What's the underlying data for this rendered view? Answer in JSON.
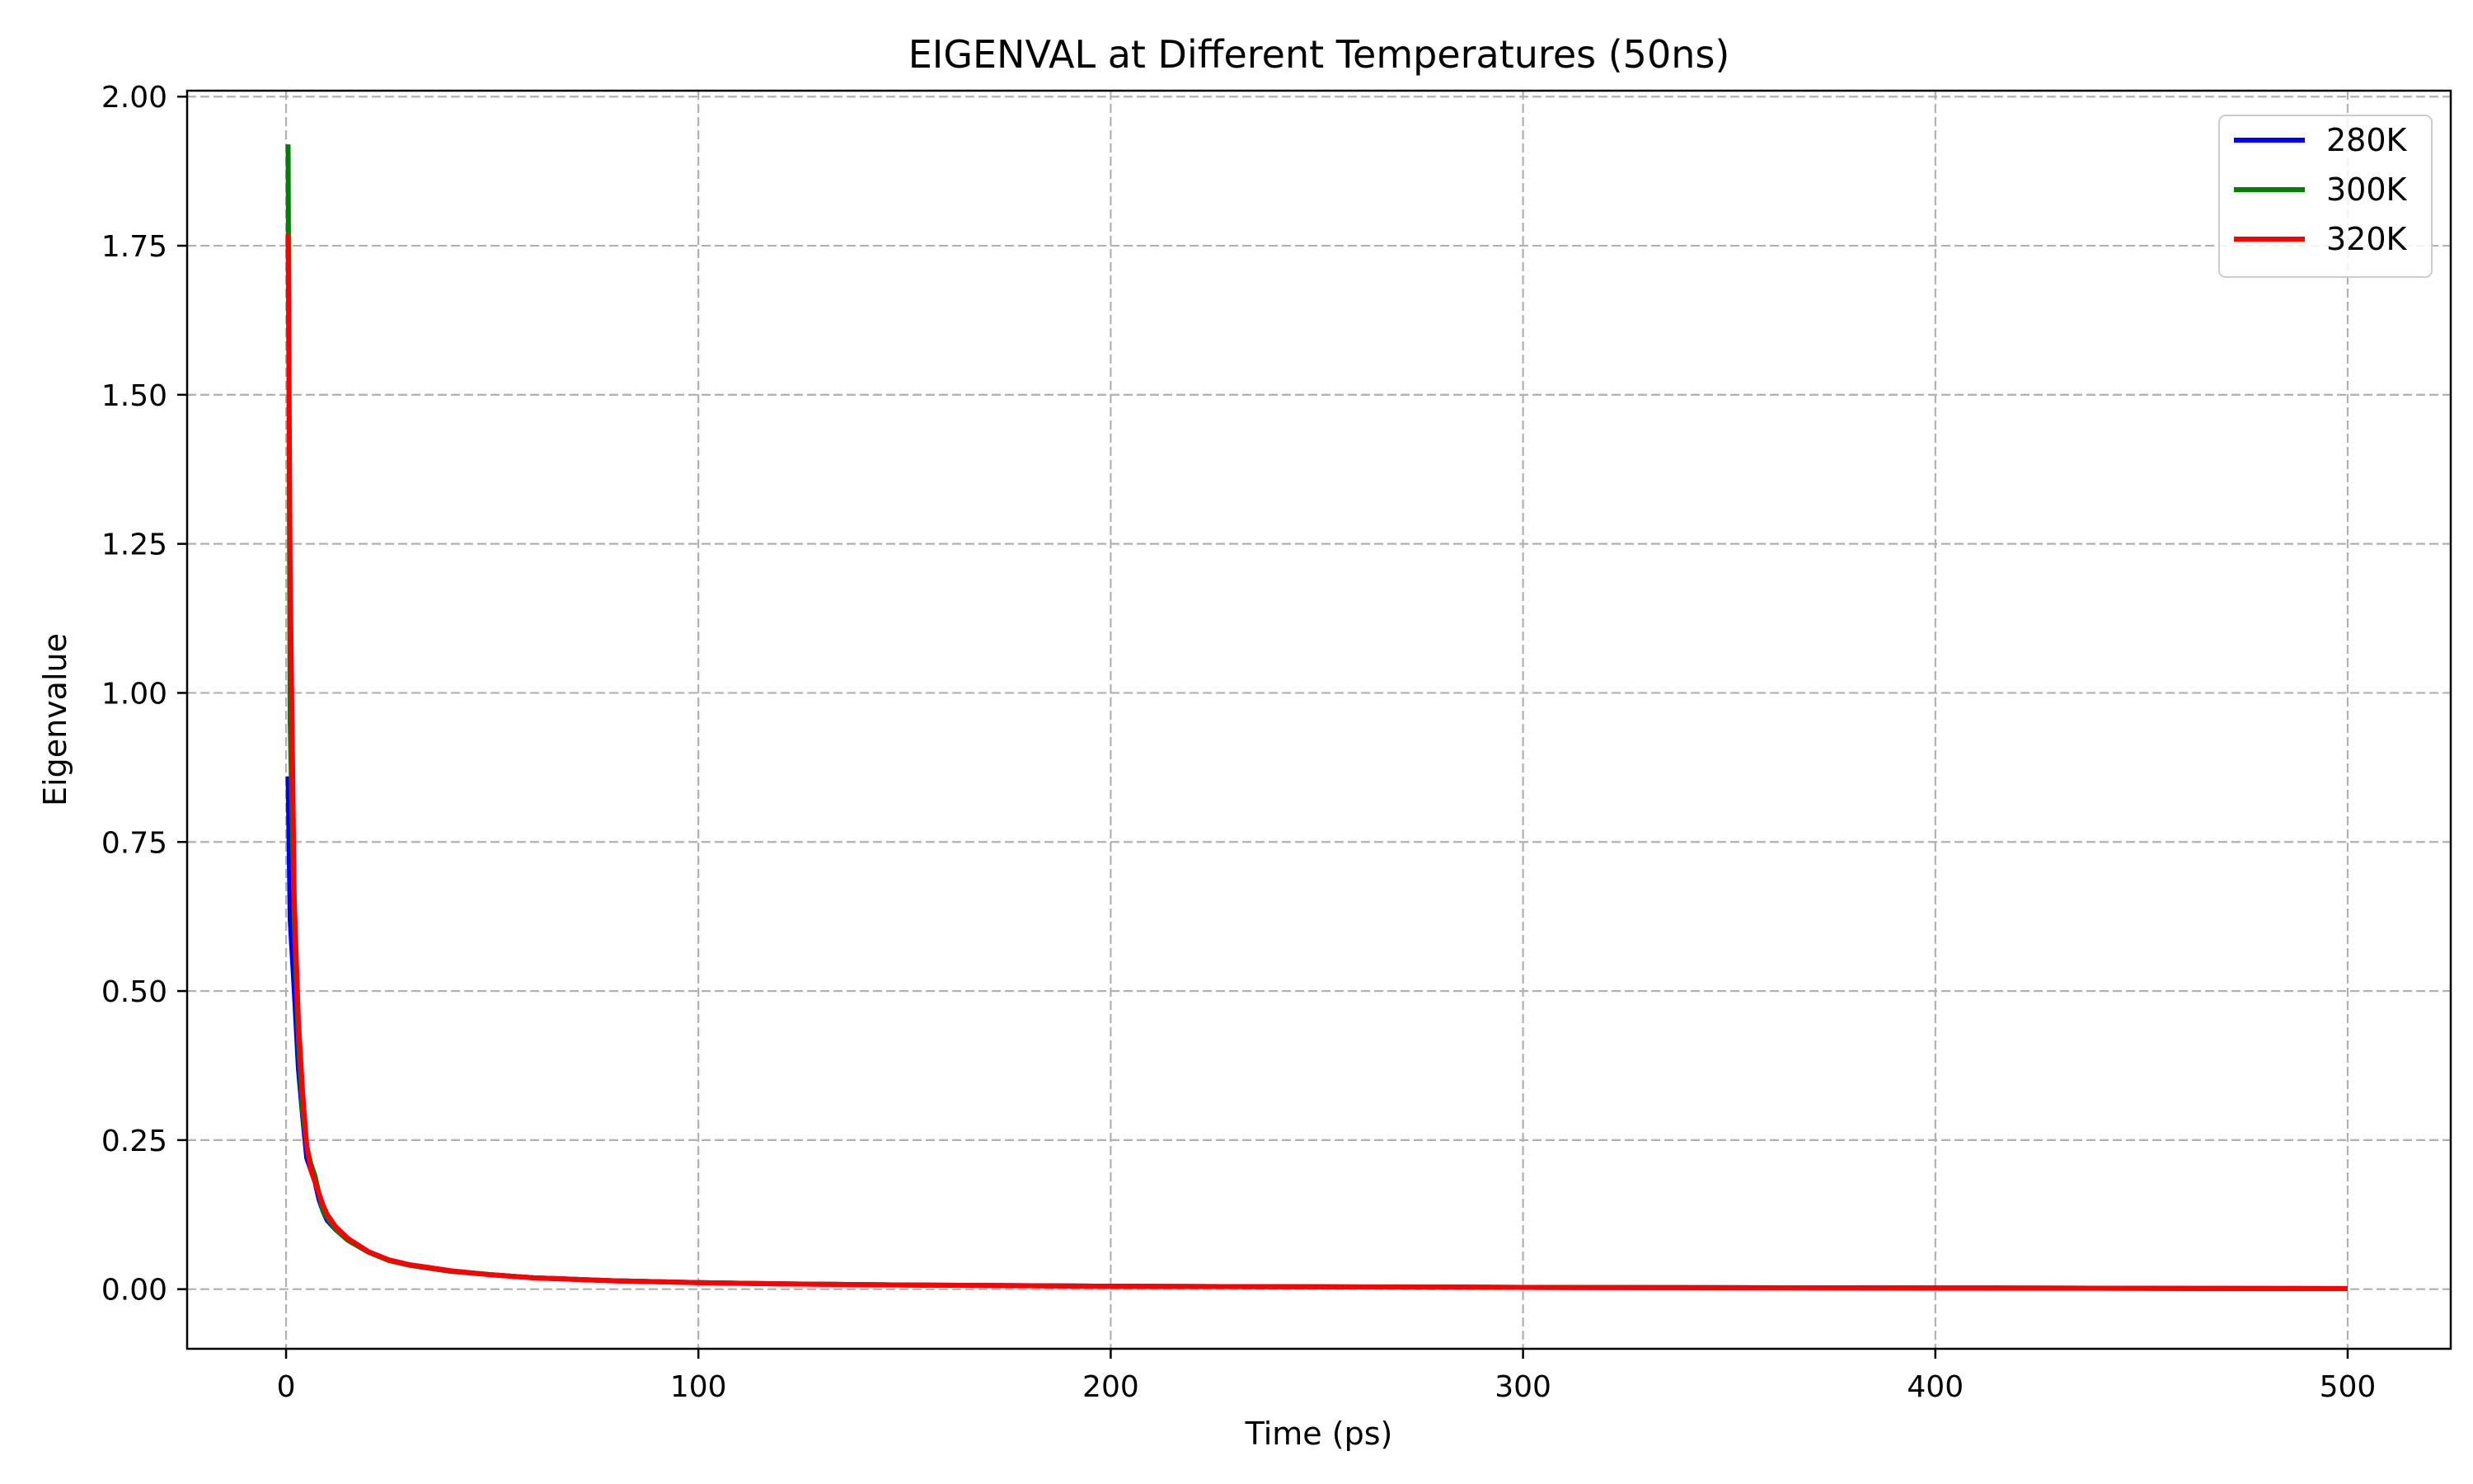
{
  "chart_data": {
    "type": "line",
    "title": "EIGENVAL at Different Temperatures (50ns)",
    "xlabel": "Time (ps)",
    "ylabel": "Eigenvalue",
    "xlim": [
      -24,
      525
    ],
    "ylim": [
      -0.1,
      2.01
    ],
    "xticks": [
      0,
      100,
      200,
      300,
      400,
      500
    ],
    "yticks": [
      0.0,
      0.25,
      0.5,
      0.75,
      1.0,
      1.25,
      1.5,
      1.75,
      2.0
    ],
    "xtick_labels": [
      "0",
      "100",
      "200",
      "300",
      "400",
      "500"
    ],
    "ytick_labels": [
      "0.00",
      "0.25",
      "0.50",
      "0.75",
      "1.00",
      "1.25",
      "1.50",
      "1.75",
      "2.00"
    ],
    "grid": true,
    "legend_position": "top-right",
    "series": [
      {
        "name": "280K",
        "color": "#0000ff",
        "x": [
          0.5,
          1,
          2,
          3,
          4,
          5,
          6,
          7,
          8,
          9,
          10,
          12,
          15,
          20,
          25,
          30,
          40,
          50,
          60,
          80,
          100,
          120,
          150,
          200,
          250,
          300,
          350,
          400,
          450,
          500
        ],
        "y": [
          0.86,
          0.62,
          0.5,
          0.37,
          0.29,
          0.22,
          0.2,
          0.18,
          0.15,
          0.13,
          0.115,
          0.1,
          0.082,
          0.062,
          0.048,
          0.04,
          0.03,
          0.024,
          0.019,
          0.014,
          0.011,
          0.009,
          0.007,
          0.005,
          0.004,
          0.003,
          0.0025,
          0.002,
          0.0015,
          0.001
        ]
      },
      {
        "name": "300K",
        "color": "#008000",
        "x": [
          0.5,
          1,
          2,
          3,
          4,
          5,
          6,
          7,
          8,
          9,
          10,
          12,
          15,
          20,
          25,
          30,
          40,
          50,
          60,
          80,
          100,
          120,
          150,
          200,
          250,
          300,
          350,
          400,
          450,
          500
        ],
        "y": [
          1.92,
          0.95,
          0.62,
          0.42,
          0.3,
          0.24,
          0.21,
          0.19,
          0.16,
          0.13,
          0.12,
          0.1,
          0.082,
          0.062,
          0.048,
          0.04,
          0.03,
          0.024,
          0.019,
          0.014,
          0.011,
          0.009,
          0.007,
          0.005,
          0.004,
          0.003,
          0.0025,
          0.002,
          0.0015,
          0.001
        ]
      },
      {
        "name": "320K",
        "color": "#ff0000",
        "x": [
          0.5,
          1,
          2,
          3,
          4,
          5,
          6,
          7,
          8,
          9,
          10,
          12,
          15,
          20,
          25,
          30,
          40,
          50,
          60,
          80,
          100,
          120,
          150,
          200,
          250,
          300,
          350,
          400,
          450,
          500
        ],
        "y": [
          1.77,
          1.2,
          0.65,
          0.45,
          0.33,
          0.24,
          0.2,
          0.18,
          0.16,
          0.14,
          0.125,
          0.105,
          0.085,
          0.063,
          0.049,
          0.041,
          0.031,
          0.024,
          0.019,
          0.014,
          0.011,
          0.009,
          0.007,
          0.005,
          0.004,
          0.003,
          0.0025,
          0.002,
          0.0015,
          0.001
        ]
      }
    ]
  }
}
